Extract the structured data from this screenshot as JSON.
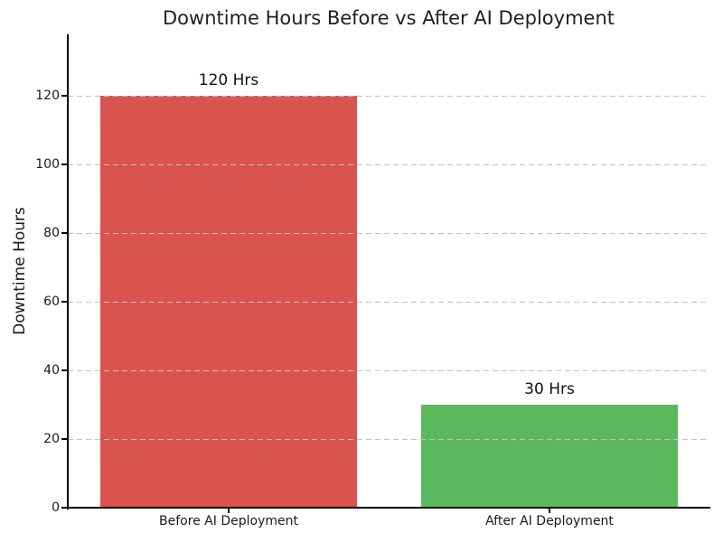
{
  "figure": {
    "background_color": "#ffffff",
    "text_color": "#1a1a1a",
    "grid_color": "#c2c2c2",
    "axis_color": "#000000"
  },
  "chart_data": {
    "type": "bar",
    "title": "Downtime Hours Before vs After AI Deployment",
    "categories": [
      "Before AI Deployment",
      "After AI Deployment"
    ],
    "values": [
      120,
      30
    ],
    "bar_labels": [
      "120 Hrs",
      "30 Hrs"
    ],
    "bar_colors": [
      "#d9534f",
      "#5cb85c"
    ],
    "xlabel": "",
    "ylabel": "Downtime Hours",
    "ylim": [
      0,
      138
    ],
    "yticks": [
      0,
      20,
      40,
      60,
      80,
      100,
      120
    ],
    "grid": "horizontal dashed, drawn over bars",
    "legend": "none"
  }
}
